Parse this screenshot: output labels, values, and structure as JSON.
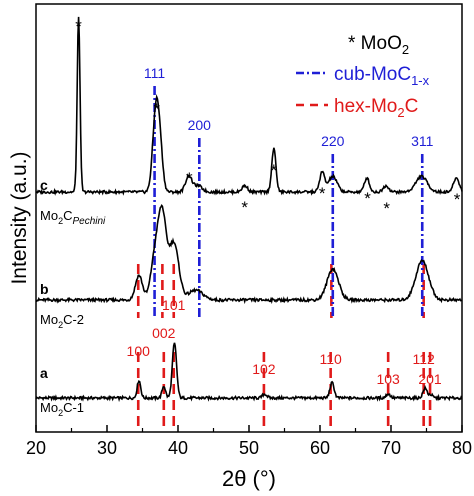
{
  "chart_data": {
    "type": "line",
    "xlabel": "2θ (°)",
    "ylabel": "Intensity (a.u.)",
    "xlim": [
      20,
      80
    ],
    "xticks": [
      20,
      30,
      40,
      50,
      60,
      70,
      80
    ],
    "y_ticks_shown": false,
    "legend": {
      "placement": "top-right",
      "entries": [
        {
          "marker": "*",
          "label": "MoO2",
          "color": "#000000"
        },
        {
          "marker": "dash-dot",
          "label": "cub-MoC1-x",
          "color": "#1f1fd6"
        },
        {
          "marker": "dash",
          "label": "hex-Mo2C",
          "color": "#e01a1a"
        }
      ]
    },
    "series": [
      {
        "letter": "a",
        "name": "Mo2C-1",
        "color": "#000000",
        "peaks": [
          {
            "x": 34.5,
            "h": 0.22,
            "w": 0.25
          },
          {
            "x": 38.0,
            "h": 0.15,
            "w": 0.25
          },
          {
            "x": 39.5,
            "h": 0.68,
            "w": 0.3
          },
          {
            "x": 52.2,
            "h": 0.05,
            "w": 0.3
          },
          {
            "x": 61.7,
            "h": 0.19,
            "w": 0.3
          },
          {
            "x": 69.6,
            "h": 0.05,
            "w": 0.3
          },
          {
            "x": 74.8,
            "h": 0.12,
            "w": 0.3
          },
          {
            "x": 75.6,
            "h": 0.04,
            "w": 0.25
          }
        ],
        "reference_lines": [
          {
            "x": 34.4,
            "label": "100",
            "phase": "hex-Mo2C"
          },
          {
            "x": 38.0,
            "label": "002",
            "phase": "hex-Mo2C"
          },
          {
            "x": 39.4,
            "label": "101",
            "phase": "hex-Mo2C"
          },
          {
            "x": 52.1,
            "label": "102",
            "phase": "hex-Mo2C"
          },
          {
            "x": 61.5,
            "label": "110",
            "phase": "hex-Mo2C"
          },
          {
            "x": 69.6,
            "label": "103",
            "phase": "hex-Mo2C"
          },
          {
            "x": 74.6,
            "label": "112",
            "phase": "hex-Mo2C"
          },
          {
            "x": 75.5,
            "label": "201",
            "phase": "hex-Mo2C"
          }
        ]
      },
      {
        "letter": "b",
        "name": "Mo2C-2",
        "color": "#000000",
        "peaks": [
          {
            "x": 34.5,
            "h": 0.3,
            "w": 0.5
          },
          {
            "x": 36.8,
            "h": 0.55,
            "w": 0.6
          },
          {
            "x": 37.8,
            "h": 0.95,
            "w": 0.55
          },
          {
            "x": 39.4,
            "h": 0.7,
            "w": 0.7
          },
          {
            "x": 42.5,
            "h": 0.12,
            "w": 1.0
          },
          {
            "x": 61.8,
            "h": 0.38,
            "w": 0.8
          },
          {
            "x": 74.4,
            "h": 0.48,
            "w": 0.9
          }
        ],
        "reference_lines": [
          {
            "x": 34.4,
            "phase": "hex-Mo2C"
          },
          {
            "x": 37.8,
            "phase": "hex-Mo2C"
          },
          {
            "x": 39.4,
            "phase": "hex-Mo2C"
          },
          {
            "x": 61.6,
            "phase": "hex-Mo2C"
          },
          {
            "x": 74.6,
            "phase": "hex-Mo2C"
          }
        ]
      },
      {
        "letter": "c",
        "name": "Mo2C",
        "name_subscript": "Pechini",
        "color": "#000000",
        "peaks": [
          {
            "x": 26.0,
            "h": 2.25,
            "w": 0.2
          },
          {
            "x": 36.9,
            "h": 1.05,
            "w": 0.45
          },
          {
            "x": 37.5,
            "h": 0.4,
            "w": 0.4
          },
          {
            "x": 41.5,
            "h": 0.2,
            "w": 0.45
          },
          {
            "x": 42.8,
            "h": 0.08,
            "w": 0.6
          },
          {
            "x": 49.4,
            "h": 0.08,
            "w": 0.4
          },
          {
            "x": 53.5,
            "h": 0.55,
            "w": 0.3
          },
          {
            "x": 60.3,
            "h": 0.25,
            "w": 0.35
          },
          {
            "x": 61.8,
            "h": 0.2,
            "w": 0.6
          },
          {
            "x": 66.6,
            "h": 0.18,
            "w": 0.35
          },
          {
            "x": 69.3,
            "h": 0.08,
            "w": 0.4
          },
          {
            "x": 74.3,
            "h": 0.2,
            "w": 0.8
          },
          {
            "x": 79.2,
            "h": 0.18,
            "w": 0.4
          }
        ],
        "moo2_star_positions": [
          26.0,
          37.0,
          41.6,
          49.4,
          53.5,
          60.3,
          66.7,
          69.4,
          79.3
        ],
        "reference_lines": [
          {
            "x": 36.7,
            "label": "111",
            "phase": "cub-MoC1-x"
          },
          {
            "x": 43.0,
            "label": "200",
            "phase": "cub-MoC1-x"
          },
          {
            "x": 61.8,
            "label": "220",
            "phase": "cub-MoC1-x"
          },
          {
            "x": 74.4,
            "label": "311",
            "phase": "cub-MoC1-x"
          }
        ]
      }
    ]
  },
  "labels": {
    "legend_moo2": "* MoO",
    "legend_moo2_sub": "2",
    "legend_cub_main": "cub-MoC",
    "legend_cub_sub": "1-x",
    "legend_hex_main": "hex-Mo",
    "legend_hex_sub": "2",
    "legend_hex_tail": "C",
    "sample_c_letter": "c",
    "sample_c_main": "Mo",
    "sample_c_sub": "2",
    "sample_c_c": "C",
    "sample_c_italic": "Pechini",
    "sample_b_letter": "b",
    "sample_b_main": "Mo",
    "sample_b_sub": "2",
    "sample_b_tail": "C-2",
    "sample_a_letter": "a",
    "sample_a_main": "Mo",
    "sample_a_sub": "2",
    "sample_a_tail": "C-1"
  }
}
